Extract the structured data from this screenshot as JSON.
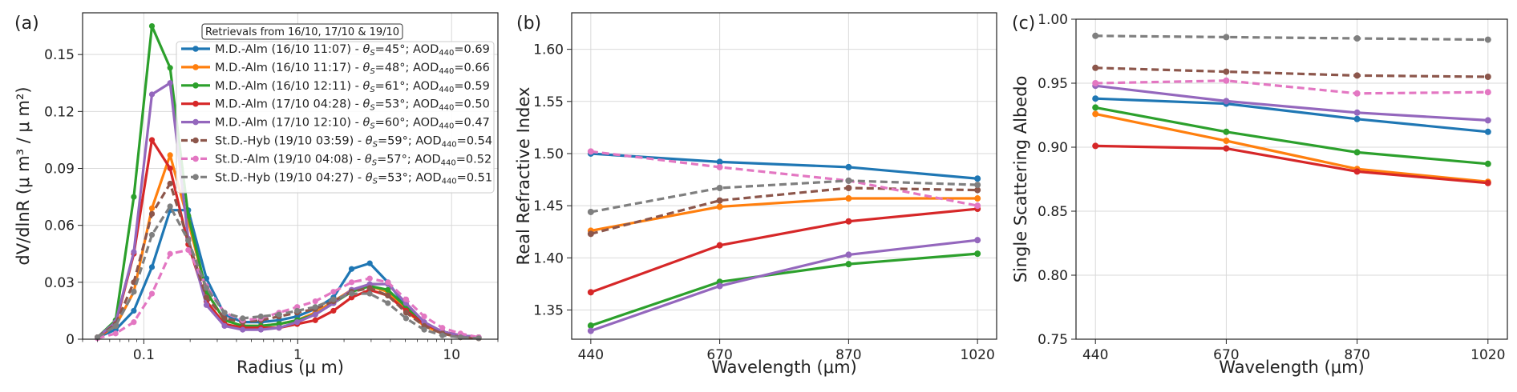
{
  "chart_data": [
    {
      "type": "line",
      "panel_label": "(a)",
      "xlabel": "Radius (μ m)",
      "ylabel": "dV/dlnR (μ m³ / μ m²)",
      "xscale": "log",
      "xlim": [
        0.04,
        20
      ],
      "ylim": [
        0,
        0.172
      ],
      "xticks": [
        0.1,
        1,
        10
      ],
      "xtick_labels": [
        "0.1",
        "1",
        "10"
      ],
      "yticks": [
        0,
        0.03,
        0.06,
        0.09,
        0.12,
        0.15
      ],
      "ytick_labels": [
        "0",
        "0.03",
        "0.06",
        "0.09",
        "0.12",
        "0.15"
      ],
      "grid": true,
      "legend_title": "Retrievals from 16/10, 17/10 & 19/10",
      "legend_position": "top-right",
      "x": [
        0.05,
        0.0656,
        0.0861,
        0.1129,
        0.1482,
        0.1944,
        0.2551,
        0.3347,
        0.4391,
        0.5762,
        0.756,
        0.9919,
        1.3014,
        1.7075,
        2.2404,
        2.9396,
        3.857,
        5.0606,
        6.6399,
        8.7121,
        11.431,
        15.0
      ],
      "series": [
        {
          "name": "M.D.-Alm (16/10 11:07) - θS=45°; AOD440=0.69",
          "legend_prefix": "M.D.-Alm (16/10 11:07) - ",
          "legend_theta": "=45°; AOD",
          "legend_aod": "=0.69",
          "color": "#1f77b4",
          "dashed": false,
          "values": [
            0.001,
            0.005,
            0.015,
            0.038,
            0.068,
            0.068,
            0.032,
            0.013,
            0.009,
            0.009,
            0.01,
            0.012,
            0.016,
            0.022,
            0.037,
            0.04,
            0.03,
            0.017,
            0.008,
            0.004,
            0.002,
            0.001
          ],
          "r": [
            0.938,
            0.934,
            0.922,
            0.912
          ],
          "n": [
            1.5,
            1.492,
            1.487,
            1.476
          ]
        },
        {
          "name": "M.D.-Alm (16/10 11:17) - θS=48°; AOD440=0.66",
          "legend_prefix": "M.D.-Alm (16/10 11:17) - ",
          "legend_theta": "=48°; AOD",
          "legend_aod": "=0.66",
          "color": "#ff7f0e",
          "dashed": false,
          "values": [
            0.001,
            0.007,
            0.025,
            0.069,
            0.097,
            0.062,
            0.025,
            0.01,
            0.007,
            0.007,
            0.008,
            0.01,
            0.014,
            0.02,
            0.026,
            0.028,
            0.025,
            0.015,
            0.007,
            0.003,
            0.001,
            0.0005
          ],
          "r": [
            0.926,
            0.905,
            0.883,
            0.873
          ],
          "n": [
            1.426,
            1.449,
            1.457,
            1.457
          ]
        },
        {
          "name": "M.D.-Alm (16/10 12:11) - θS=61°; AOD440=0.59",
          "legend_prefix": "M.D.-Alm (16/10 12:11) - ",
          "legend_theta": "=61°; AOD",
          "legend_aod": "=0.59",
          "color": "#2ca02c",
          "dashed": false,
          "values": [
            0.001,
            0.01,
            0.075,
            0.165,
            0.143,
            0.065,
            0.025,
            0.01,
            0.007,
            0.007,
            0.008,
            0.01,
            0.013,
            0.019,
            0.025,
            0.028,
            0.026,
            0.017,
            0.008,
            0.004,
            0.002,
            0.001
          ],
          "r": [
            0.931,
            0.912,
            0.896,
            0.887
          ],
          "n": [
            1.335,
            1.377,
            1.394,
            1.404
          ]
        },
        {
          "name": "M.D.-Alm (17/10 04:28) - θS=53°; AOD440=0.50",
          "legend_prefix": "M.D.-Alm (17/10 04:28) - ",
          "legend_theta": "=53°; AOD",
          "legend_aod": "=0.50",
          "color": "#d62728",
          "dashed": false,
          "values": [
            0.001,
            0.008,
            0.045,
            0.105,
            0.09,
            0.05,
            0.02,
            0.008,
            0.006,
            0.006,
            0.006,
            0.008,
            0.01,
            0.015,
            0.022,
            0.026,
            0.023,
            0.015,
            0.008,
            0.004,
            0.002,
            0.001
          ],
          "r": [
            0.901,
            0.899,
            0.881,
            0.872
          ],
          "n": [
            1.367,
            1.412,
            1.435,
            1.447
          ]
        },
        {
          "name": "M.D.-Alm (17/10 12:10) - θS=60°; AOD440=0.47",
          "legend_prefix": "M.D.-Alm (17/10 12:10) - ",
          "legend_theta": "=60°; AOD",
          "legend_aod": "=0.47",
          "color": "#9467bd",
          "dashed": false,
          "values": [
            0.001,
            0.009,
            0.046,
            0.129,
            0.135,
            0.053,
            0.018,
            0.007,
            0.005,
            0.005,
            0.006,
            0.009,
            0.013,
            0.019,
            0.026,
            0.029,
            0.029,
            0.019,
            0.009,
            0.004,
            0.002,
            0.001
          ],
          "r": [
            0.948,
            0.936,
            0.927,
            0.921
          ],
          "n": [
            1.33,
            1.373,
            1.403,
            1.417
          ]
        },
        {
          "name": "St.D.-Hyb (19/10 03:59) - θS=59°; AOD440=0.54",
          "legend_prefix": "St.D.-Hyb (19/10 03:59) - ",
          "legend_theta": "=59°; AOD",
          "legend_aod": "=0.54",
          "color": "#8c564b",
          "dashed": true,
          "values": [
            0.001,
            0.008,
            0.03,
            0.066,
            0.082,
            0.052,
            0.022,
            0.011,
            0.009,
            0.01,
            0.012,
            0.014,
            0.016,
            0.02,
            0.025,
            0.027,
            0.023,
            0.014,
            0.007,
            0.003,
            0.001,
            0.0005
          ],
          "r": [
            0.962,
            0.959,
            0.956,
            0.955
          ],
          "n": [
            1.423,
            1.455,
            1.467,
            1.465
          ]
        },
        {
          "name": "St.D.-Alm (19/10 04:08) - θS=57°; AOD440=0.52",
          "legend_prefix": "St.D.-Alm (19/10 04:08) - ",
          "legend_theta": "=57°; AOD",
          "legend_aod": "=0.52",
          "color": "#e377c2",
          "dashed": true,
          "values": [
            0.0005,
            0.003,
            0.009,
            0.024,
            0.045,
            0.047,
            0.028,
            0.014,
            0.01,
            0.011,
            0.014,
            0.017,
            0.02,
            0.025,
            0.03,
            0.032,
            0.03,
            0.021,
            0.012,
            0.006,
            0.003,
            0.001
          ],
          "r": [
            0.95,
            0.952,
            0.942,
            0.943
          ],
          "n": [
            1.502,
            1.487,
            1.474,
            1.45
          ]
        },
        {
          "name": "St.D.-Hyb (19/10 04:27) - θS=53°; AOD440=0.51",
          "legend_prefix": "St.D.-Hyb (19/10 04:27) - ",
          "legend_theta": "=53°; AOD",
          "legend_aod": "=0.51",
          "color": "#7f7f7f",
          "dashed": true,
          "values": [
            0.001,
            0.007,
            0.025,
            0.055,
            0.07,
            0.052,
            0.027,
            0.014,
            0.011,
            0.012,
            0.013,
            0.015,
            0.017,
            0.021,
            0.024,
            0.024,
            0.019,
            0.011,
            0.005,
            0.002,
            0.001,
            0.0005
          ],
          "r": [
            0.987,
            0.986,
            0.985,
            0.984
          ],
          "n": [
            1.444,
            1.467,
            1.474,
            1.47
          ]
        }
      ]
    },
    {
      "type": "line",
      "panel_label": "(b)",
      "xlabel": "Wavelength (μm)",
      "ylabel": "Real Refractive Index",
      "categories": [
        "440",
        "670",
        "870",
        "1020"
      ],
      "ylim": [
        1.322,
        1.635
      ],
      "yticks": [
        1.35,
        1.4,
        1.45,
        1.5,
        1.55,
        1.6
      ],
      "ytick_labels": [
        "1.35",
        "1.40",
        "1.45",
        "1.50",
        "1.55",
        "1.60"
      ],
      "grid": true,
      "series_ref": "same series as panel (a), values in field n"
    },
    {
      "type": "line",
      "panel_label": "(c)",
      "xlabel": "Wavelength (μm)",
      "ylabel": "Single Scattering Albedo",
      "categories": [
        "440",
        "670",
        "870",
        "1020"
      ],
      "ylim": [
        0.75,
        1.0
      ],
      "yticks": [
        0.75,
        0.8,
        0.85,
        0.9,
        0.95,
        1.0
      ],
      "ytick_labels": [
        "0.75",
        "0.80",
        "0.85",
        "0.90",
        "0.95",
        "1.00"
      ],
      "grid": true,
      "series_ref": "same series as panel (a), values in field r"
    }
  ]
}
